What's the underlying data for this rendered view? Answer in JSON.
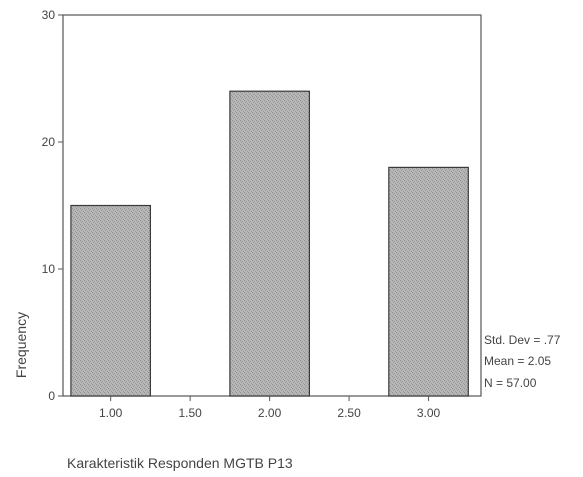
{
  "chart_data": {
    "type": "bar",
    "title": "",
    "xlabel": "Karakteristik Responden MGTB P13",
    "ylabel": "Frequency",
    "x_ticks": [
      "1.00",
      "1.50",
      "2.00",
      "2.50",
      "3.00"
    ],
    "x_tick_values": [
      1.0,
      1.5,
      2.0,
      2.5,
      3.0
    ],
    "xlim": [
      0.7,
      3.33
    ],
    "y_ticks": [
      "0",
      "10",
      "20",
      "30"
    ],
    "y_tick_values": [
      0,
      10,
      20,
      30
    ],
    "ylim": [
      0,
      30
    ],
    "bars": [
      {
        "center": 1.0,
        "value": 15
      },
      {
        "center": 2.0,
        "value": 24
      },
      {
        "center": 3.0,
        "value": 18
      }
    ],
    "bar_width": 0.5,
    "bar_color": "#b4b4b4",
    "grid": false,
    "stats": {
      "std_dev": "Std. Dev = .77",
      "mean": "Mean = 2.05",
      "n": "N = 57.00"
    }
  }
}
